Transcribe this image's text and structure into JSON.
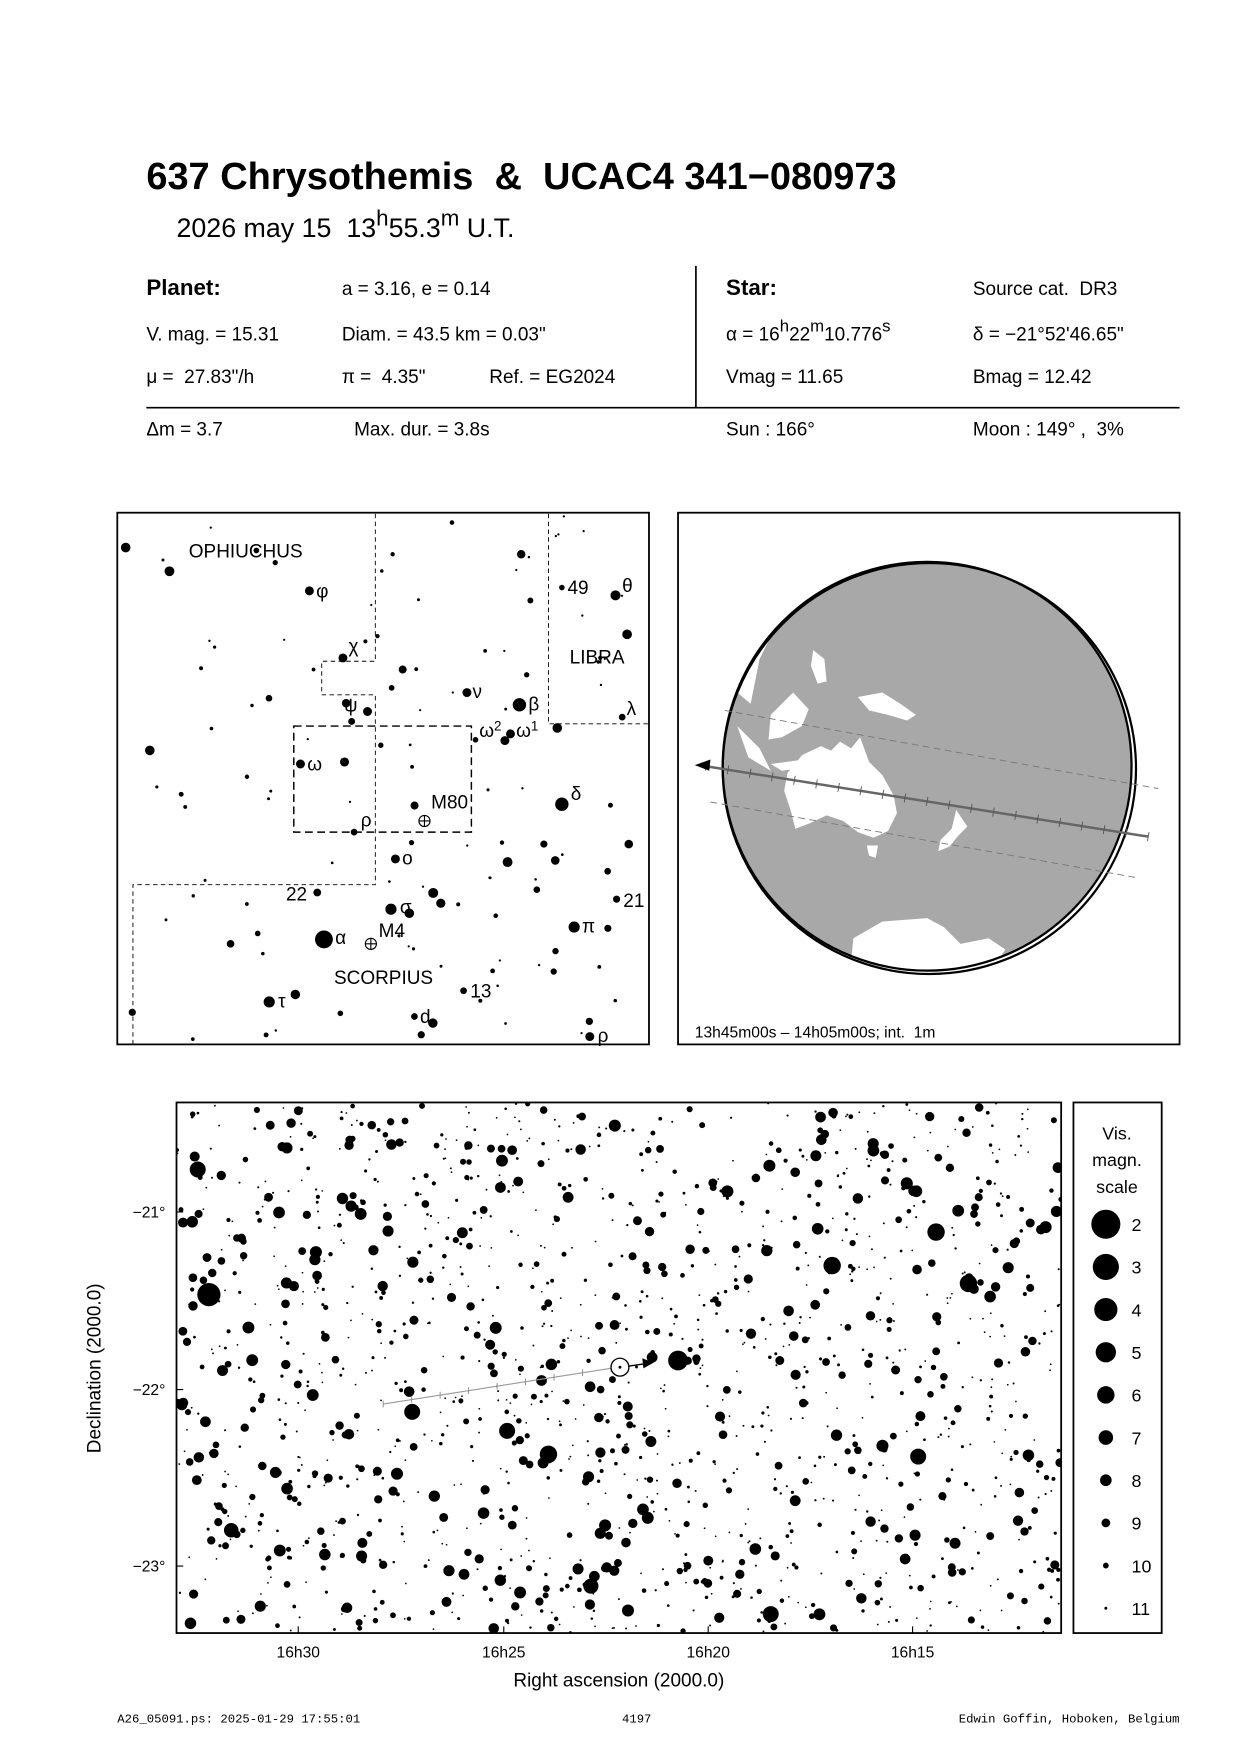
{
  "title": "637 Chrysothemis  &  UCAC4 341−080973",
  "subtitle": {
    "date": "2026 may 15",
    "hour": "13",
    "h": "h",
    "minute": "55.3",
    "m": "m",
    "ut": "U.T."
  },
  "planet": {
    "heading": "Planet:",
    "orbit": "a = 3.16, e = 0.14",
    "vmag": "V. mag. = 15.31",
    "diam": "Diam. = 43.5 km = 0.03\"",
    "mu": "μ =  27.83\"/h",
    "parallax": "π =  4.35\"",
    "ref": "Ref. = EG2024"
  },
  "star": {
    "heading": "Star:",
    "source": "Source cat.  DR3",
    "ra": {
      "prefix": "α = 16",
      "h": "h",
      "min": "22",
      "m": "m",
      "sec": "10.776",
      "s": "s"
    },
    "dec": "δ = −21°52'46.65\"",
    "vmag": "Vmag = 11.65",
    "bmag": "Bmag = 12.42"
  },
  "event": {
    "dm": "Δm = 3.7",
    "maxdur": "Max. dur. = 3.8s",
    "sun": "Sun : 166°",
    "moon": "Moon : 149° ,  3%"
  },
  "finder": {
    "constellations": [
      "OPHIUCHUS",
      "LIBRA",
      "SCORPIUS"
    ],
    "stars": {
      "phi": "φ",
      "chi": "χ",
      "psi": "ψ",
      "nu": "ν",
      "beta": "β",
      "omega2": "ω",
      "omega2_sup": "2",
      "omega1": "ω",
      "omega1_sup": "1",
      "omega": "ω",
      "rho": "ρ",
      "delta": "δ",
      "omicron": "o",
      "n22": "22",
      "sigma": "σ",
      "alpha": "α",
      "n13": "13",
      "tau": "τ",
      "d": "d",
      "rho2": "ρ",
      "n49": "49",
      "theta": "θ",
      "lambda": "λ",
      "pi": "π",
      "n21": "21"
    },
    "clusters": [
      "M80",
      "M4"
    ]
  },
  "globe": {
    "caption": "13h45m00s – 14h05m00s; int.  1m",
    "ocean_color": "#a8a8a8",
    "land_color": "#ffffff"
  },
  "detail_chart": {
    "xlabel": "Right ascension (2000.0)",
    "ylabel": "Declination (2000.0)",
    "xticks": [
      "16h30",
      "16h25",
      "16h20",
      "16h15"
    ],
    "yticks": [
      "−21°",
      "−22°",
      "−23°"
    ],
    "legend": {
      "title": [
        "Vis.",
        "magn.",
        "scale"
      ],
      "mags": [
        "2",
        "3",
        "4",
        "5",
        "6",
        "7",
        "8",
        "9",
        "10",
        "11"
      ]
    }
  },
  "footer": {
    "file": "A26_05091.ps: 2025-01-29 17:55:01",
    "number": "4197",
    "author": "Edwin Goffin, Hoboken, Belgium"
  }
}
